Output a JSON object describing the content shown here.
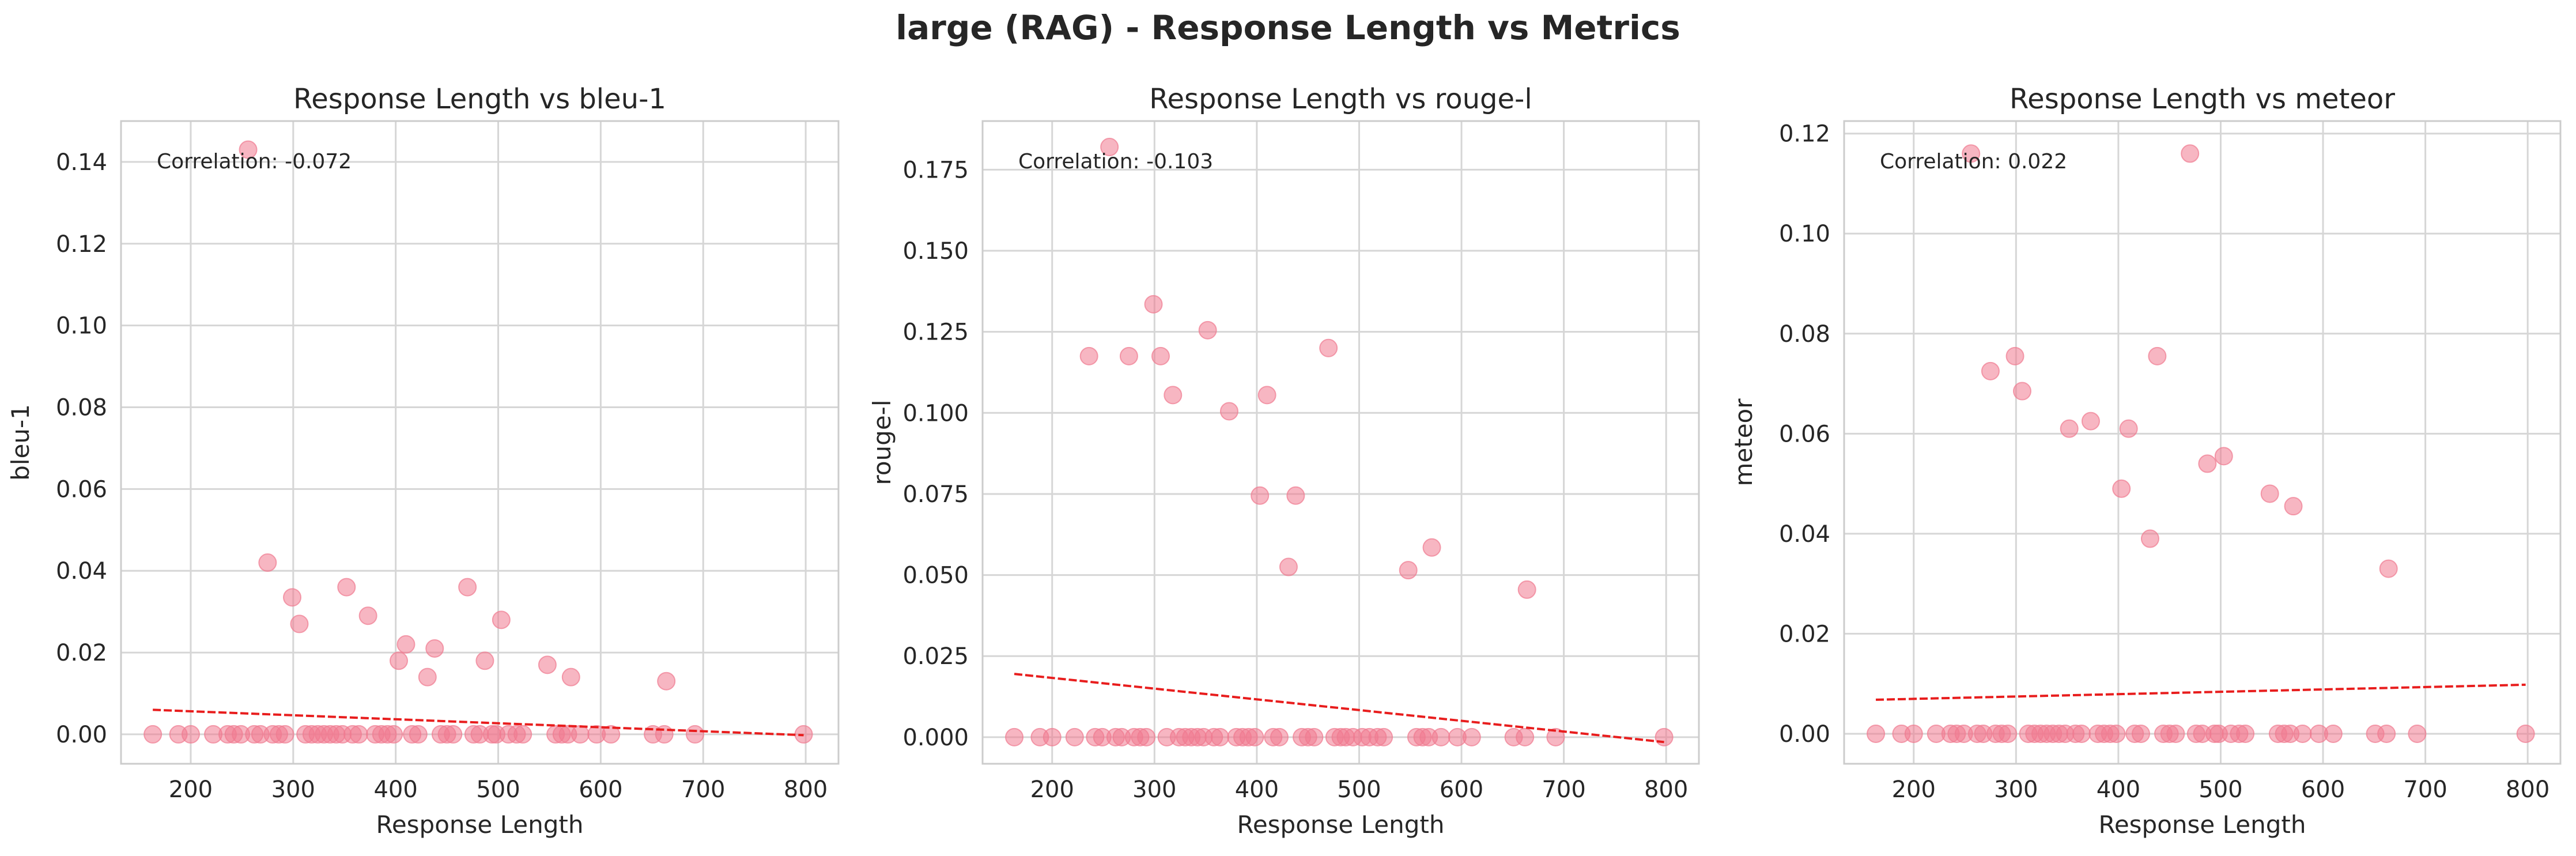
{
  "figure": {
    "suptitle": "large (RAG) - Response Length vs Metrics"
  },
  "style": {
    "point_color": "#f07a90",
    "trend_color": "#e81d1d",
    "grid_color": "#d6d6d6",
    "text_color": "#262626"
  },
  "chart_data": [
    {
      "type": "scatter",
      "title": "Response Length vs bleu-1",
      "xlabel": "Response Length",
      "ylabel": "bleu-1",
      "xlim": [
        132,
        832
      ],
      "ylim": [
        -0.0072,
        0.15
      ],
      "xticks": [
        200,
        300,
        400,
        500,
        600,
        700,
        800
      ],
      "yticks": [
        0.0,
        0.02,
        0.04,
        0.06,
        0.08,
        0.1,
        0.12,
        0.14
      ],
      "ytick_labels": [
        "0.00",
        "0.02",
        "0.04",
        "0.06",
        "0.08",
        "0.10",
        "0.12",
        "0.14"
      ],
      "annotation": "Correlation: -0.072",
      "grid": true,
      "trend": {
        "x": [
          163,
          798
        ],
        "y": [
          0.006,
          -0.0002
        ]
      },
      "points": [
        [
          256,
          0.143
        ],
        [
          275,
          0.042
        ],
        [
          299,
          0.0335
        ],
        [
          306,
          0.027
        ],
        [
          352,
          0.036
        ],
        [
          373,
          0.029
        ],
        [
          403,
          0.018
        ],
        [
          410,
          0.022
        ],
        [
          431,
          0.014
        ],
        [
          438,
          0.021
        ],
        [
          470,
          0.036
        ],
        [
          487,
          0.018
        ],
        [
          503,
          0.028
        ],
        [
          548,
          0.017
        ],
        [
          571,
          0.014
        ],
        [
          664,
          0.013
        ],
        [
          163,
          0
        ],
        [
          188,
          0
        ],
        [
          200,
          0
        ],
        [
          222,
          0
        ],
        [
          236,
          0
        ],
        [
          242,
          0
        ],
        [
          249,
          0
        ],
        [
          262,
          0
        ],
        [
          268,
          0
        ],
        [
          280,
          0
        ],
        [
          286,
          0
        ],
        [
          292,
          0
        ],
        [
          312,
          0
        ],
        [
          318,
          0
        ],
        [
          324,
          0
        ],
        [
          330,
          0
        ],
        [
          336,
          0
        ],
        [
          342,
          0
        ],
        [
          348,
          0
        ],
        [
          358,
          0
        ],
        [
          364,
          0
        ],
        [
          380,
          0
        ],
        [
          386,
          0
        ],
        [
          392,
          0
        ],
        [
          398,
          0
        ],
        [
          416,
          0
        ],
        [
          422,
          0
        ],
        [
          444,
          0
        ],
        [
          450,
          0
        ],
        [
          456,
          0
        ],
        [
          476,
          0
        ],
        [
          482,
          0
        ],
        [
          494,
          0
        ],
        [
          498,
          0
        ],
        [
          510,
          0
        ],
        [
          518,
          0
        ],
        [
          524,
          0
        ],
        [
          556,
          0
        ],
        [
          562,
          0
        ],
        [
          568,
          0
        ],
        [
          580,
          0
        ],
        [
          596,
          0
        ],
        [
          610,
          0
        ],
        [
          651,
          0
        ],
        [
          662,
          0
        ],
        [
          692,
          0
        ],
        [
          798,
          0
        ]
      ]
    },
    {
      "type": "scatter",
      "title": "Response Length vs rouge-l",
      "xlabel": "Response Length",
      "ylabel": "rouge-l",
      "xlim": [
        132,
        832
      ],
      "ylim": [
        -0.0082,
        0.19
      ],
      "xticks": [
        200,
        300,
        400,
        500,
        600,
        700,
        800
      ],
      "yticks": [
        0.0,
        0.025,
        0.05,
        0.075,
        0.1,
        0.125,
        0.15,
        0.175
      ],
      "ytick_labels": [
        "0.000",
        "0.025",
        "0.050",
        "0.075",
        "0.100",
        "0.125",
        "0.150",
        "0.175"
      ],
      "annotation": "Correlation: -0.103",
      "grid": true,
      "trend": {
        "x": [
          163,
          798
        ],
        "y": [
          0.0195,
          -0.0015
        ]
      },
      "points": [
        [
          256,
          0.182
        ],
        [
          236,
          0.1175
        ],
        [
          275,
          0.1175
        ],
        [
          299,
          0.1335
        ],
        [
          306,
          0.1175
        ],
        [
          318,
          0.1055
        ],
        [
          352,
          0.1255
        ],
        [
          373,
          0.1005
        ],
        [
          403,
          0.0745
        ],
        [
          410,
          0.1055
        ],
        [
          431,
          0.0525
        ],
        [
          438,
          0.0745
        ],
        [
          470,
          0.12
        ],
        [
          548,
          0.0515
        ],
        [
          571,
          0.0585
        ],
        [
          664,
          0.0455
        ],
        [
          163,
          0
        ],
        [
          188,
          0
        ],
        [
          200,
          0
        ],
        [
          222,
          0
        ],
        [
          242,
          0
        ],
        [
          249,
          0
        ],
        [
          262,
          0
        ],
        [
          268,
          0
        ],
        [
          280,
          0
        ],
        [
          286,
          0
        ],
        [
          292,
          0
        ],
        [
          312,
          0
        ],
        [
          324,
          0
        ],
        [
          330,
          0
        ],
        [
          336,
          0
        ],
        [
          342,
          0
        ],
        [
          348,
          0
        ],
        [
          358,
          0
        ],
        [
          364,
          0
        ],
        [
          380,
          0
        ],
        [
          386,
          0
        ],
        [
          392,
          0
        ],
        [
          398,
          0
        ],
        [
          416,
          0
        ],
        [
          422,
          0
        ],
        [
          444,
          0
        ],
        [
          450,
          0
        ],
        [
          456,
          0
        ],
        [
          476,
          0
        ],
        [
          482,
          0
        ],
        [
          487,
          0
        ],
        [
          494,
          0
        ],
        [
          503,
          0
        ],
        [
          510,
          0
        ],
        [
          518,
          0
        ],
        [
          524,
          0
        ],
        [
          556,
          0
        ],
        [
          562,
          0
        ],
        [
          568,
          0
        ],
        [
          580,
          0
        ],
        [
          596,
          0
        ],
        [
          610,
          0
        ],
        [
          651,
          0
        ],
        [
          662,
          0
        ],
        [
          692,
          0
        ],
        [
          798,
          0
        ]
      ]
    },
    {
      "type": "scatter",
      "title": "Response Length vs meteor",
      "xlabel": "Response Length",
      "ylabel": "meteor",
      "xlim": [
        132,
        832
      ],
      "ylim": [
        -0.006,
        0.1225
      ],
      "xticks": [
        200,
        300,
        400,
        500,
        600,
        700,
        800
      ],
      "yticks": [
        0.0,
        0.02,
        0.04,
        0.06,
        0.08,
        0.1,
        0.12
      ],
      "ytick_labels": [
        "0.00",
        "0.02",
        "0.04",
        "0.06",
        "0.08",
        "0.10",
        "0.12"
      ],
      "annotation": "Correlation: 0.022",
      "grid": true,
      "trend": {
        "x": [
          163,
          798
        ],
        "y": [
          0.0068,
          0.0098
        ]
      },
      "points": [
        [
          256,
          0.116
        ],
        [
          470,
          0.116
        ],
        [
          275,
          0.0725
        ],
        [
          299,
          0.0755
        ],
        [
          306,
          0.0685
        ],
        [
          352,
          0.061
        ],
        [
          373,
          0.0625
        ],
        [
          403,
          0.049
        ],
        [
          410,
          0.061
        ],
        [
          431,
          0.039
        ],
        [
          438,
          0.0755
        ],
        [
          487,
          0.054
        ],
        [
          503,
          0.0555
        ],
        [
          548,
          0.048
        ],
        [
          571,
          0.0455
        ],
        [
          664,
          0.033
        ],
        [
          163,
          0
        ],
        [
          188,
          0
        ],
        [
          200,
          0
        ],
        [
          222,
          0
        ],
        [
          236,
          0
        ],
        [
          242,
          0
        ],
        [
          249,
          0
        ],
        [
          262,
          0
        ],
        [
          268,
          0
        ],
        [
          280,
          0
        ],
        [
          286,
          0
        ],
        [
          292,
          0
        ],
        [
          312,
          0
        ],
        [
          318,
          0
        ],
        [
          324,
          0
        ],
        [
          330,
          0
        ],
        [
          336,
          0
        ],
        [
          342,
          0
        ],
        [
          348,
          0
        ],
        [
          358,
          0
        ],
        [
          364,
          0
        ],
        [
          380,
          0
        ],
        [
          386,
          0
        ],
        [
          392,
          0
        ],
        [
          398,
          0
        ],
        [
          416,
          0
        ],
        [
          422,
          0
        ],
        [
          444,
          0
        ],
        [
          450,
          0
        ],
        [
          456,
          0
        ],
        [
          476,
          0
        ],
        [
          482,
          0
        ],
        [
          494,
          0
        ],
        [
          498,
          0
        ],
        [
          510,
          0
        ],
        [
          518,
          0
        ],
        [
          524,
          0
        ],
        [
          556,
          0
        ],
        [
          562,
          0
        ],
        [
          568,
          0
        ],
        [
          580,
          0
        ],
        [
          596,
          0
        ],
        [
          610,
          0
        ],
        [
          651,
          0
        ],
        [
          662,
          0
        ],
        [
          692,
          0
        ],
        [
          798,
          0
        ]
      ]
    }
  ]
}
